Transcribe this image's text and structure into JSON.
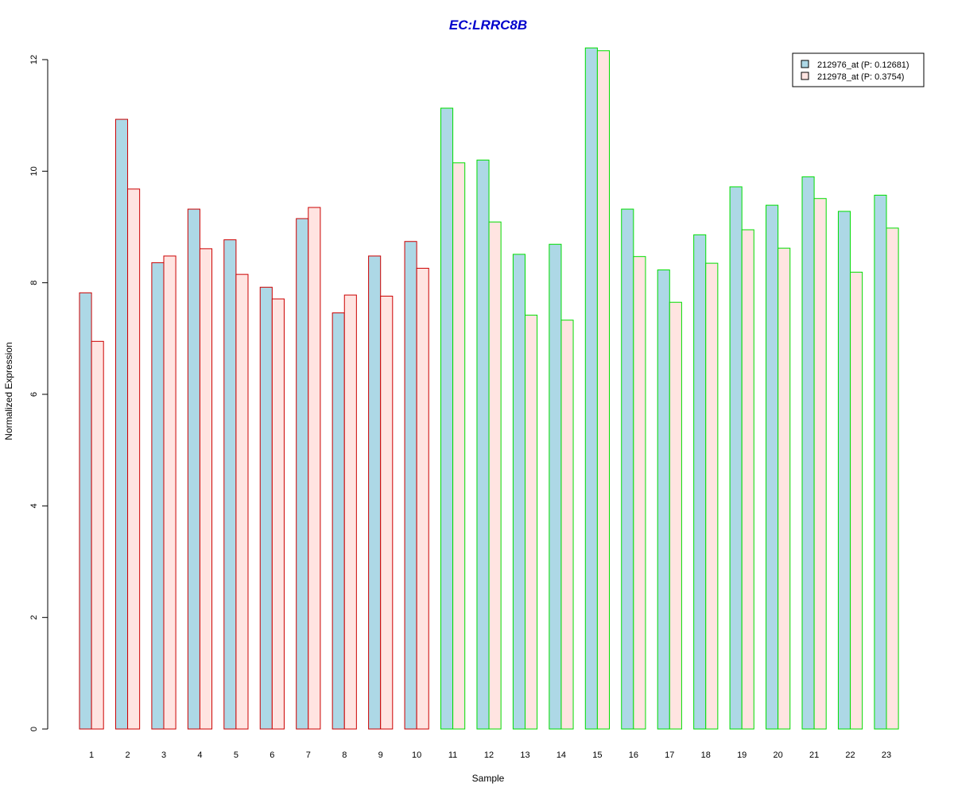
{
  "chart_data": {
    "type": "bar",
    "title": "EC:LRRC8B",
    "xlabel": "Sample",
    "ylabel": "Normalized Expression",
    "ylim": [
      0,
      12
    ],
    "yticks": [
      0,
      2,
      4,
      6,
      8,
      10,
      12
    ],
    "grid": false,
    "legend_position": "top-right",
    "categories": [
      "1",
      "2",
      "3",
      "4",
      "5",
      "6",
      "7",
      "8",
      "9",
      "10",
      "11",
      "12",
      "13",
      "14",
      "15",
      "16",
      "17",
      "18",
      "19",
      "20",
      "21",
      "22",
      "23"
    ],
    "series": [
      {
        "name": "212976_at (P: 0.12681)",
        "fill": "#add8e6",
        "values": [
          7.82,
          10.93,
          8.36,
          9.32,
          8.77,
          7.92,
          9.15,
          7.46,
          8.48,
          8.74,
          11.13,
          10.2,
          8.51,
          8.69,
          12.21,
          9.32,
          8.23,
          8.86,
          9.72,
          9.39,
          9.9,
          9.28,
          9.57
        ]
      },
      {
        "name": "212978_at (P: 0.3754)",
        "fill": "#ffe4e1",
        "values": [
          6.95,
          9.68,
          8.48,
          8.61,
          8.15,
          7.71,
          9.35,
          7.78,
          7.76,
          8.26,
          10.15,
          9.09,
          7.42,
          7.33,
          12.16,
          8.47,
          7.65,
          8.35,
          8.95,
          8.62,
          9.51,
          8.19,
          8.98
        ]
      }
    ],
    "group_border_colors": [
      "#cc0000",
      "#cc0000",
      "#cc0000",
      "#cc0000",
      "#cc0000",
      "#cc0000",
      "#cc0000",
      "#cc0000",
      "#cc0000",
      "#cc0000",
      "#00dd00",
      "#00dd00",
      "#00dd00",
      "#00dd00",
      "#00dd00",
      "#00dd00",
      "#00dd00",
      "#00dd00",
      "#00dd00",
      "#00dd00",
      "#00dd00",
      "#00dd00",
      "#00dd00"
    ],
    "title_color": "#0000cc"
  }
}
